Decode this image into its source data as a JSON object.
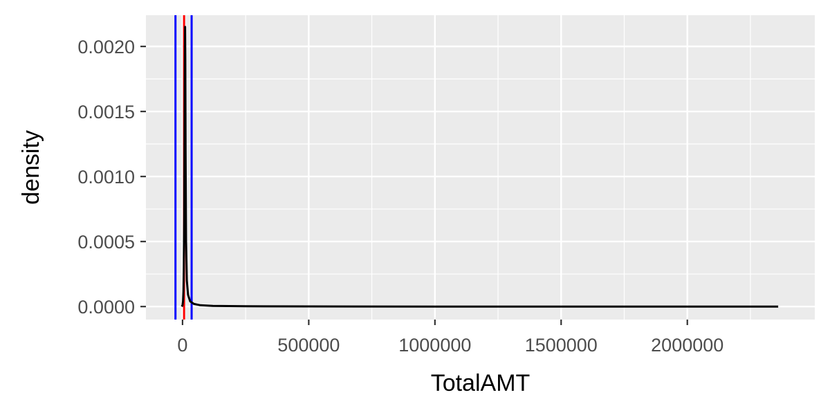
{
  "chart_data": {
    "type": "line",
    "title": "",
    "xlabel": "TotalAMT",
    "ylabel": "density",
    "xlim": [
      -145000,
      2505000
    ],
    "ylim": [
      -0.0001,
      0.00224
    ],
    "x_ticks": [
      0,
      500000,
      1000000,
      1500000,
      2000000
    ],
    "x_tick_labels": [
      "0",
      "500000",
      "1000000",
      "1500000",
      "2000000"
    ],
    "y_ticks": [
      0,
      0.0005,
      0.001,
      0.0015,
      0.002
    ],
    "y_tick_labels": [
      "0.0000",
      "0.0005",
      "0.0010",
      "0.0015",
      "0.0020"
    ],
    "grid": true,
    "legend": "none",
    "series": [
      {
        "x": [
          -3000,
          0,
          2000,
          3500,
          5000,
          6500,
          8000,
          9000,
          10000,
          11000,
          12000,
          14000,
          17000,
          22000,
          30000,
          45000,
          70000,
          120000,
          250000,
          500000,
          1000000,
          1500000,
          2000000,
          2360000
        ],
        "y": [
          0,
          1e-05,
          4e-05,
          0.00012,
          0.0003,
          0.0007,
          0.0013,
          0.0018,
          0.00215,
          0.0019,
          0.0012,
          0.0005,
          0.0002,
          9e-05,
          4e-05,
          2e-05,
          1e-05,
          5e-06,
          2e-06,
          1e-06,
          0,
          0,
          0,
          0
        ],
        "color": "#000000"
      }
    ],
    "vlines": [
      {
        "x": -28000,
        "color": "#0000ff"
      },
      {
        "x": 6000,
        "color": "#ff0000"
      },
      {
        "x": 36000,
        "color": "#0000ff"
      }
    ],
    "panel_color": "#ebebeb",
    "grid_color": "#ffffff"
  }
}
